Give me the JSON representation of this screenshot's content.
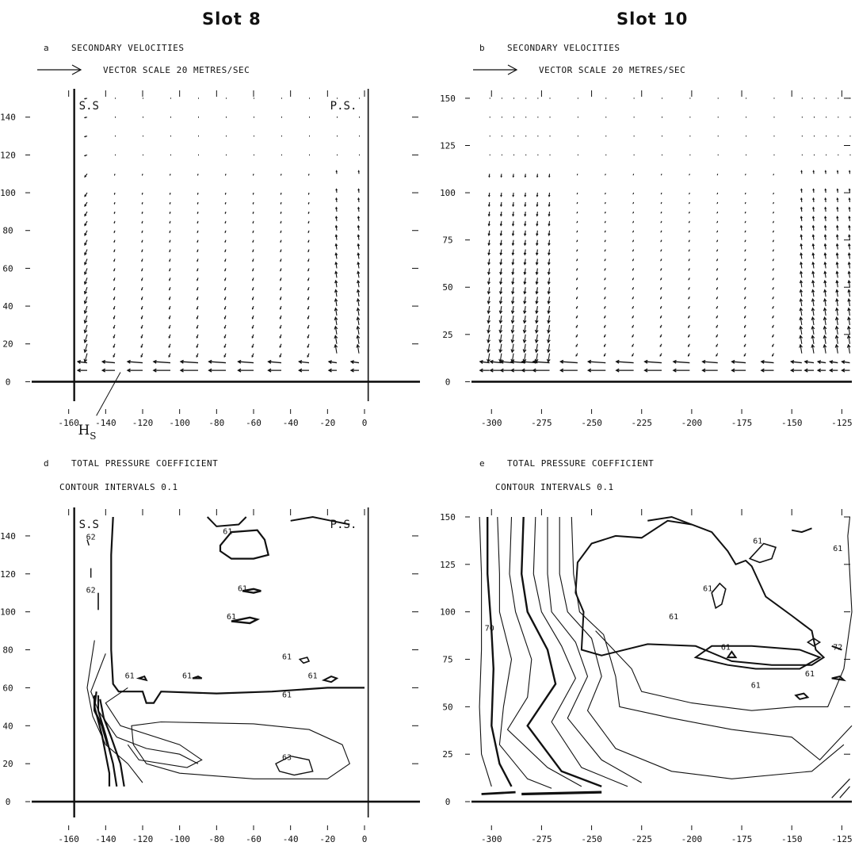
{
  "columns": {
    "left": "Slot 8",
    "right": "Slot 10"
  },
  "annotation_hs": "H",
  "annotation_hs_sub": "S",
  "colors": {
    "ink": "#111111",
    "background": "#ffffff"
  },
  "chart_data": [
    {
      "id": "a",
      "type": "vector-field",
      "letter": "a",
      "title": "SECONDARY VELOCITIES",
      "subtitle": "VECTOR SCALE 20 METRES/SEC",
      "left_corner_label": "S.S",
      "right_corner_label": "P.S.",
      "xlim": [
        -180,
        30
      ],
      "ylim": [
        -12,
        155
      ],
      "x_ticks": [
        -160,
        -140,
        -120,
        -100,
        -80,
        -60,
        -40,
        -20,
        0
      ],
      "y_ticks": [
        0,
        20,
        40,
        60,
        80,
        100,
        120,
        140
      ],
      "walls_x": [
        -157,
        2
      ],
      "columns_x": [
        -150,
        -135,
        -120,
        -105,
        -90,
        -75,
        -60,
        -45,
        -30,
        -15,
        -3
      ],
      "grid_y": [
        150,
        140,
        130,
        120,
        110,
        100,
        95,
        90,
        85,
        80,
        75,
        70,
        65,
        60,
        55,
        50,
        45,
        40,
        35,
        30,
        25,
        20,
        15,
        10,
        6
      ],
      "strong_columns_from": 1,
      "vector_notes": "Vectors near the floor point toward the suction side (S.S); upward flow along the pressure side, downward flow near the suction side."
    },
    {
      "id": "b",
      "type": "vector-field",
      "letter": "b",
      "title": "SECONDARY VELOCITIES",
      "subtitle": "VECTOR SCALE 20 METRES/SEC",
      "xlim": [
        -310,
        -120
      ],
      "ylim": [
        -12,
        155
      ],
      "x_ticks": [
        -300,
        -275,
        -250,
        -225,
        -200,
        -175,
        -150,
        -125
      ],
      "y_ticks": [
        0,
        25,
        50,
        75,
        100,
        125,
        150
      ],
      "columns_x": [
        -301,
        -295,
        -289,
        -283,
        -277,
        -271,
        -257,
        -243,
        -229,
        -215,
        -201,
        -187,
        -173,
        -159,
        -145,
        -139,
        -133,
        -127,
        -121
      ],
      "grid_y": [
        150,
        140,
        130,
        120,
        110,
        100,
        95,
        90,
        85,
        80,
        75,
        70,
        65,
        60,
        55,
        50,
        45,
        40,
        35,
        30,
        25,
        20,
        15,
        10,
        6
      ]
    },
    {
      "id": "d",
      "type": "contour",
      "letter": "d",
      "title": "TOTAL PRESSURE COEFFICIENT",
      "subtitle": "CONTOUR INTERVALS  0.1",
      "left_corner_label": "S.S",
      "right_corner_label": "P.S.",
      "xlim": [
        -180,
        30
      ],
      "ylim": [
        -10,
        155
      ],
      "x_ticks": [
        -160,
        -140,
        -120,
        -100,
        -80,
        -60,
        -40,
        -20,
        0
      ],
      "y_ticks": [
        0,
        20,
        40,
        60,
        80,
        100,
        120,
        140
      ],
      "walls_x": [
        -157,
        2
      ],
      "contour_labels": [
        {
          "text": "62",
          "x": -148,
          "y": 138
        },
        {
          "text": "62",
          "x": -148,
          "y": 110
        },
        {
          "text": "61",
          "x": -74,
          "y": 141
        },
        {
          "text": "61",
          "x": -66,
          "y": 111
        },
        {
          "text": "61",
          "x": -72,
          "y": 96
        },
        {
          "text": "61",
          "x": -127,
          "y": 65
        },
        {
          "text": "61",
          "x": -96,
          "y": 65
        },
        {
          "text": "61",
          "x": -42,
          "y": 75
        },
        {
          "text": "61",
          "x": -42,
          "y": 55
        },
        {
          "text": "61",
          "x": -28,
          "y": 65
        },
        {
          "text": "63",
          "x": -42,
          "y": 22
        }
      ]
    },
    {
      "id": "e",
      "type": "contour",
      "letter": "e",
      "title": "TOTAL PRESSURE COEFFICIENT",
      "subtitle": "CONTOUR INTERVALS  0.1",
      "xlim": [
        -310,
        -120
      ],
      "ylim": [
        -10,
        155
      ],
      "x_ticks": [
        -300,
        -275,
        -250,
        -225,
        -200,
        -175,
        -150,
        -125
      ],
      "y_ticks": [
        0,
        25,
        50,
        75,
        100,
        125,
        150
      ],
      "contour_labels": [
        {
          "text": "70",
          "x": -301,
          "y": 90
        },
        {
          "text": "61",
          "x": -167,
          "y": 136
        },
        {
          "text": "61",
          "x": -127,
          "y": 132
        },
        {
          "text": "61",
          "x": -192,
          "y": 111
        },
        {
          "text": "61",
          "x": -209,
          "y": 96
        },
        {
          "text": "61",
          "x": -183,
          "y": 80
        },
        {
          "text": "61",
          "x": -141,
          "y": 66
        },
        {
          "text": "72",
          "x": -127,
          "y": 80
        },
        {
          "text": "61",
          "x": -168,
          "y": 60
        }
      ]
    }
  ]
}
